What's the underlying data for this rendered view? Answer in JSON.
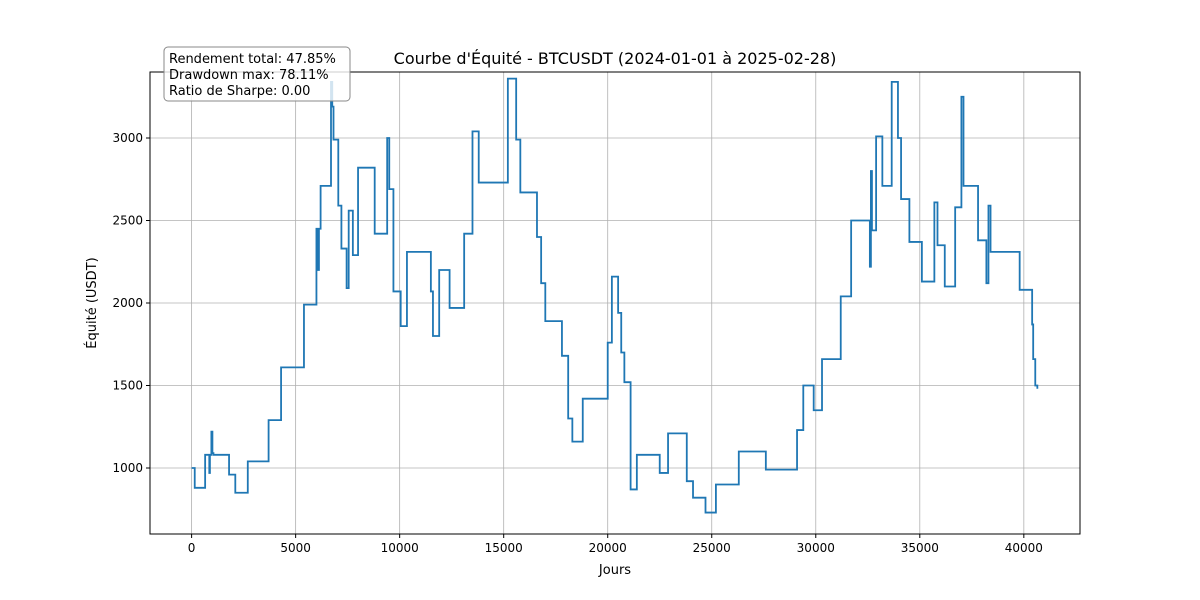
{
  "chart_data": {
    "type": "line",
    "title": "Courbe d'Équité - BTCUSDT (2024-01-01 à 2025-02-28)",
    "xlabel": "Jours",
    "ylabel": "Équité (USDT)",
    "xlim": [
      -2000,
      42700
    ],
    "ylim": [
      600,
      3400
    ],
    "xticks": [
      0,
      5000,
      10000,
      15000,
      20000,
      25000,
      30000,
      35000,
      40000
    ],
    "xtick_labels": [
      "0",
      "5000",
      "10000",
      "15000",
      "20000",
      "25000",
      "30000",
      "35000",
      "40000"
    ],
    "yticks": [
      1000,
      1500,
      2000,
      2500,
      3000
    ],
    "ytick_labels": [
      "1000",
      "1500",
      "2000",
      "2500",
      "3000"
    ],
    "grid": true,
    "line_color": "#1f77b4",
    "step": "post",
    "stats_box": [
      "Rendement total: 47.85%",
      "Drawdown max: 78.11%",
      "Ratio de Sharpe: 0.00"
    ],
    "series": [
      {
        "x": [
          0,
          150,
          650,
          850,
          880,
          950,
          1000,
          1050,
          1800,
          2100,
          2700,
          3700,
          4300,
          5400,
          6000,
          6060,
          6120,
          6200,
          6700,
          6760,
          6820,
          7050,
          7200,
          7450,
          7550,
          7750,
          8000,
          8800,
          9400,
          9500,
          9700,
          10050,
          10350,
          11500,
          11600,
          11900,
          12400,
          13100,
          13500,
          13800,
          15200,
          15600,
          15800,
          16600,
          16800,
          17000,
          17800,
          18100,
          18300,
          18800,
          20000,
          20200,
          20500,
          20650,
          20800,
          21100,
          21400,
          22500,
          22900,
          23800,
          24100,
          24700,
          25200,
          26300,
          27600,
          29100,
          29400,
          29900,
          30300,
          31200,
          31700,
          32600,
          32650,
          32700,
          32900,
          33200,
          33650,
          33950,
          34100,
          34500,
          35100,
          35700,
          35850,
          36200,
          36700,
          37000,
          37100,
          37800,
          38200,
          38300,
          38400,
          38500,
          39800,
          40400,
          40450,
          40550,
          40650
        ],
        "y": [
          1000,
          880,
          1080,
          970,
          1080,
          1220,
          1090,
          1080,
          960,
          850,
          1040,
          1290,
          1610,
          1990,
          2450,
          2200,
          2450,
          2710,
          3340,
          3190,
          2990,
          2590,
          2330,
          2090,
          2560,
          2290,
          2820,
          2420,
          3000,
          2690,
          2070,
          1860,
          2310,
          2070,
          1800,
          2200,
          1970,
          2420,
          3040,
          2730,
          3360,
          2990,
          2670,
          2400,
          2120,
          1890,
          1680,
          1300,
          1160,
          1420,
          1760,
          2160,
          1940,
          1700,
          1520,
          870,
          1080,
          970,
          1210,
          920,
          820,
          730,
          900,
          1100,
          990,
          1230,
          1500,
          1350,
          1660,
          2040,
          2500,
          2220,
          2800,
          2440,
          3010,
          2710,
          3340,
          3000,
          2630,
          2370,
          2130,
          2610,
          2350,
          2100,
          2580,
          3250,
          2710,
          2380,
          2120,
          2590,
          2310,
          2310,
          2080,
          1870,
          1660,
          1500,
          1480
        ]
      }
    ]
  }
}
